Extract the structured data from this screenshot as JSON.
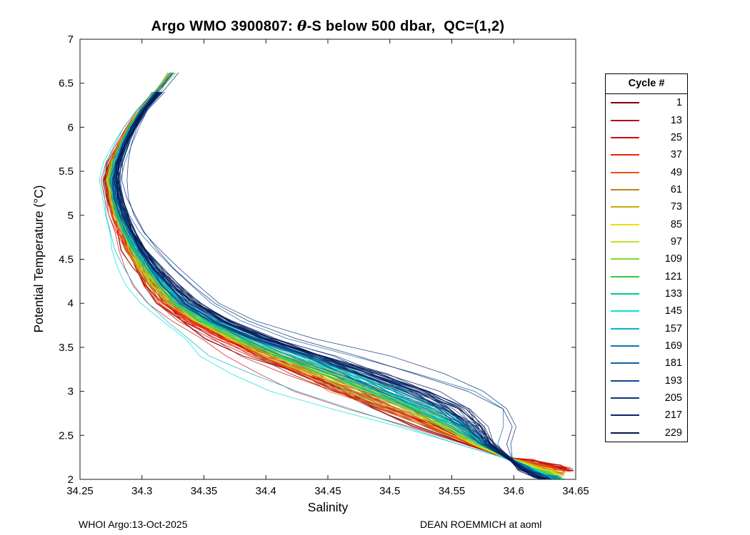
{
  "figure": {
    "title_prefix": "Argo WMO 3900807: ",
    "title_theta": "θ",
    "title_suffix": "-S below 500 dbar,  QC=(1,2)",
    "footer_left": "WHOI Argo:13-Oct-2025",
    "footer_right": "DEAN ROEMMICH at aoml"
  },
  "chart_data": {
    "type": "line",
    "title": "Argo WMO 3900807: θ-S below 500 dbar,  QC=(1,2)",
    "xlabel": "Salinity",
    "ylabel": "Potential Temperature (°C)",
    "xlim": [
      34.25,
      34.65
    ],
    "ylim": [
      2,
      7
    ],
    "xticks": [
      34.25,
      34.3,
      34.35,
      34.4,
      34.45,
      34.5,
      34.55,
      34.6,
      34.65
    ],
    "xtick_labels": [
      "34.25",
      "34.3",
      "34.35",
      "34.4",
      "34.45",
      "34.5",
      "34.55",
      "34.6",
      "34.65"
    ],
    "yticks": [
      2,
      2.5,
      3,
      3.5,
      4,
      4.5,
      5,
      5.5,
      6,
      6.5,
      7
    ],
    "ytick_labels": [
      "2",
      "2.5",
      "3",
      "3.5",
      "4",
      "4.5",
      "5",
      "5.5",
      "6",
      "6.5",
      "7"
    ],
    "grid": false,
    "legend_title": "Cycle #",
    "legend_position": "right-outside",
    "theta_levels": [
      6.62,
      6.4,
      6.2,
      6.0,
      5.8,
      5.6,
      5.4,
      5.2,
      5.0,
      4.8,
      4.6,
      4.4,
      4.2,
      4.0,
      3.8,
      3.6,
      3.4,
      3.2,
      3.0,
      2.8,
      2.6,
      2.4,
      2.25
    ],
    "center_salinity": [
      34.324,
      34.312,
      34.3,
      34.291,
      34.284,
      34.278,
      34.275,
      34.277,
      34.281,
      34.287,
      34.294,
      34.303,
      34.314,
      34.328,
      34.35,
      34.38,
      34.415,
      34.452,
      34.487,
      34.52,
      34.548,
      34.572,
      34.594
    ],
    "spread_salinity": [
      0.009,
      0.009,
      0.008,
      0.008,
      0.008,
      0.009,
      0.01,
      0.01,
      0.011,
      0.011,
      0.012,
      0.013,
      0.015,
      0.018,
      0.022,
      0.028,
      0.038,
      0.042,
      0.045,
      0.04,
      0.03,
      0.016,
      0.008
    ],
    "separation_profile": [
      0.3,
      0.3,
      0.35,
      0.4,
      0.45,
      0.5,
      0.55,
      0.6,
      0.65,
      0.7,
      0.8,
      0.9,
      1.0,
      1.0,
      1.0,
      1.0,
      1.0,
      1.0,
      1.0,
      1.0,
      0.9,
      0.7,
      0.2
    ],
    "lines_per_series": 6,
    "series": [
      {
        "name": "1",
        "cycle": 1,
        "color": "#7f0000",
        "pos": -0.55,
        "extra_pos": [],
        "tail": [
          [
            34.616,
            2.2
          ],
          [
            34.636,
            2.14
          ],
          [
            34.645,
            2.11
          ]
        ]
      },
      {
        "name": "13",
        "cycle": 13,
        "color": "#ad0f0f",
        "pos": -0.482,
        "extra_pos": [],
        "tail": [
          [
            34.616,
            2.2
          ],
          [
            34.636,
            2.14
          ],
          [
            34.645,
            2.11
          ]
        ]
      },
      {
        "name": "25",
        "cycle": 25,
        "color": "#d40b0b",
        "pos": -0.413,
        "extra_pos": [
          -1.2
        ],
        "tail": [
          [
            34.616,
            2.2
          ],
          [
            34.636,
            2.14
          ],
          [
            34.644,
            2.11
          ]
        ]
      },
      {
        "name": "37",
        "cycle": 37,
        "color": "#ef2200",
        "pos": -0.345,
        "extra_pos": [],
        "tail": [
          [
            34.614,
            2.19
          ],
          [
            34.634,
            2.13
          ],
          [
            34.643,
            2.1
          ]
        ]
      },
      {
        "name": "49",
        "cycle": 49,
        "color": "#ea5316",
        "pos": -0.276,
        "extra_pos": [],
        "tail": [
          [
            34.613,
            2.18
          ],
          [
            34.632,
            2.12
          ],
          [
            34.641,
            2.09
          ]
        ]
      },
      {
        "name": "61",
        "cycle": 61,
        "color": "#c08017",
        "pos": -0.208,
        "extra_pos": [],
        "tail": [
          [
            34.612,
            2.17
          ],
          [
            34.63,
            2.1
          ],
          [
            34.639,
            2.06
          ]
        ]
      },
      {
        "name": "73",
        "cycle": 73,
        "color": "#ccaa0e",
        "pos": -0.139,
        "extra_pos": [],
        "tail": [
          [
            34.612,
            2.17
          ],
          [
            34.63,
            2.1
          ],
          [
            34.638,
            2.06
          ]
        ]
      },
      {
        "name": "85",
        "cycle": 85,
        "color": "#eedd0a",
        "pos": -0.071,
        "extra_pos": [],
        "tail": [
          [
            34.611,
            2.16
          ],
          [
            34.629,
            2.09
          ],
          [
            34.637,
            2.05
          ]
        ]
      },
      {
        "name": "97",
        "cycle": 97,
        "color": "#bee42a",
        "pos": -0.003,
        "extra_pos": [],
        "tail": [
          [
            34.611,
            2.15
          ],
          [
            34.628,
            2.08
          ],
          [
            34.636,
            2.04
          ]
        ]
      },
      {
        "name": "109",
        "cycle": 109,
        "color": "#7cdc2c",
        "pos": 0.066,
        "extra_pos": [],
        "tail": [
          [
            34.61,
            2.14
          ],
          [
            34.626,
            2.06
          ],
          [
            34.634,
            2.02
          ]
        ]
      },
      {
        "name": "121",
        "cycle": 121,
        "color": "#2fca3e",
        "pos": 0.134,
        "extra_pos": [],
        "tail": [
          [
            34.61,
            2.14
          ],
          [
            34.626,
            2.06
          ],
          [
            34.634,
            2.02
          ]
        ]
      },
      {
        "name": "133",
        "cycle": 133,
        "color": "#00c985",
        "pos": 0.203,
        "extra_pos": [],
        "tail": [
          [
            34.61,
            2.13
          ],
          [
            34.627,
            2.05
          ],
          [
            34.635,
            2.02
          ]
        ]
      },
      {
        "name": "145",
        "cycle": 145,
        "color": "#00e4da",
        "pos": 0.271,
        "extra_pos": [
          -1.8
        ],
        "tail": [
          [
            34.612,
            2.12
          ],
          [
            34.628,
            2.04
          ],
          [
            34.638,
            2.01
          ]
        ]
      },
      {
        "name": "157",
        "cycle": 157,
        "color": "#00b6cb",
        "pos": 0.339,
        "extra_pos": [
          -1.5
        ],
        "tail": [
          [
            34.612,
            2.12
          ],
          [
            34.628,
            2.04
          ],
          [
            34.637,
            2.01
          ]
        ]
      },
      {
        "name": "169",
        "cycle": 169,
        "color": "#0c7da0",
        "pos": 0.408,
        "extra_pos": [],
        "tail": [
          [
            34.61,
            2.12
          ],
          [
            34.624,
            2.04
          ],
          [
            34.633,
            2.01
          ]
        ]
      },
      {
        "name": "181",
        "cycle": 181,
        "color": "#0f5fa8",
        "pos": 0.476,
        "extra_pos": [
          1.6
        ],
        "tail": [
          [
            34.608,
            2.13
          ],
          [
            34.62,
            2.05
          ],
          [
            34.628,
            2.0
          ]
        ]
      },
      {
        "name": "193",
        "cycle": 193,
        "color": "#0e4791",
        "pos": 0.545,
        "extra_pos": [],
        "tail": [
          [
            34.608,
            2.13
          ],
          [
            34.62,
            2.05
          ],
          [
            34.628,
            2.0
          ]
        ]
      },
      {
        "name": "205",
        "cycle": 205,
        "color": "#0b347f",
        "pos": 0.613,
        "extra_pos": [
          2.0
        ],
        "tail": [
          [
            34.607,
            2.12
          ],
          [
            34.619,
            2.04
          ],
          [
            34.627,
            2.0
          ]
        ]
      },
      {
        "name": "217",
        "cycle": 217,
        "color": "#092468",
        "pos": 0.682,
        "extra_pos": [
          1.7
        ],
        "tail": [
          [
            34.607,
            2.12
          ],
          [
            34.618,
            2.04
          ],
          [
            34.626,
            2.0
          ]
        ]
      },
      {
        "name": "229",
        "cycle": 229,
        "color": "#061446",
        "pos": 0.75,
        "extra_pos": [],
        "tail": [
          [
            34.606,
            2.11
          ],
          [
            34.617,
            2.03
          ],
          [
            34.625,
            2.0
          ]
        ]
      }
    ]
  }
}
